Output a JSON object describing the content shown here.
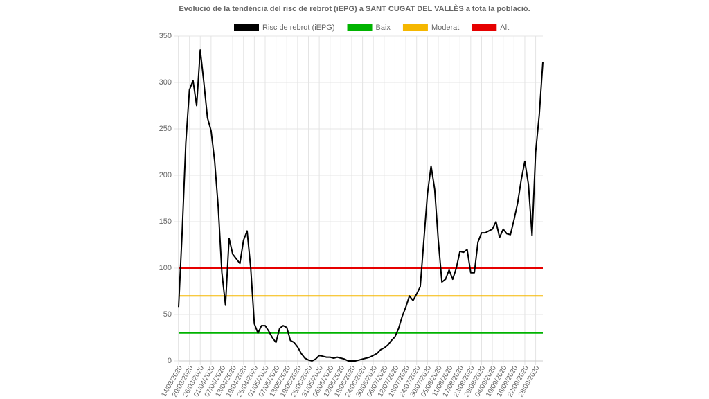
{
  "chart_data": {
    "type": "line",
    "title": "Evolució de la tendència del risc de rebrot (iEPG) a SANT CUGAT DEL VALLÈS a tota la població.",
    "categories": [
      "14/03/2020",
      null,
      null,
      "20/03/2020",
      null,
      null,
      "26/03/2020",
      null,
      null,
      "01/04/2020",
      null,
      null,
      "07/04/2020",
      null,
      null,
      "13/04/2020",
      null,
      null,
      "19/04/2020",
      null,
      null,
      "25/04/2020",
      null,
      null,
      "01/05/2020",
      null,
      null,
      "07/05/2020",
      null,
      null,
      "13/05/2020",
      null,
      null,
      "19/05/2020",
      null,
      null,
      "25/05/2020",
      null,
      null,
      "31/05/2020",
      null,
      null,
      "06/06/2020",
      null,
      null,
      "12/06/2020",
      null,
      null,
      "18/06/2020",
      null,
      null,
      "24/06/2020",
      null,
      null,
      "30/06/2020",
      null,
      null,
      "06/07/2020",
      null,
      null,
      "12/07/2020",
      null,
      null,
      "18/07/2020",
      null,
      null,
      "24/07/2020",
      null,
      null,
      "30/07/2020",
      null,
      null,
      "05/08/2020",
      null,
      null,
      "11/08/2020",
      null,
      null,
      "17/08/2020",
      null,
      null,
      "23/08/2020",
      null,
      null,
      "29/08/2020",
      null,
      null,
      "04/09/2020",
      null,
      null,
      "10/09/2020",
      null,
      null,
      "16/09/2020",
      null,
      null,
      "22/09/2020",
      null,
      null,
      "28/09/2020",
      null,
      null
    ],
    "series": [
      {
        "name": "Risc de rebrot (iEPG)",
        "color": "#000000",
        "values": [
          58,
          140,
          235,
          292,
          302,
          275,
          335,
          300,
          262,
          248,
          215,
          165,
          95,
          60,
          132,
          115,
          110,
          105,
          130,
          140,
          100,
          40,
          30,
          38,
          38,
          32,
          25,
          20,
          35,
          38,
          36,
          22,
          20,
          15,
          8,
          3,
          1,
          0,
          2,
          6,
          5,
          4,
          4,
          3,
          4,
          3,
          2,
          0,
          0,
          0,
          1,
          2,
          3,
          4,
          6,
          8,
          12,
          14,
          17,
          22,
          26,
          35,
          48,
          58,
          70,
          65,
          72,
          80,
          130,
          180,
          210,
          185,
          130,
          85,
          88,
          98,
          88,
          100,
          118,
          117,
          120,
          95,
          95,
          128,
          138,
          138,
          140,
          142,
          150,
          133,
          142,
          137,
          136,
          152,
          170,
          195,
          215,
          190,
          135,
          225,
          265,
          322
        ]
      }
    ],
    "reference_lines": [
      {
        "name": "Baix",
        "color": "#00b300",
        "value": 30
      },
      {
        "name": "Moderat",
        "color": "#f5b700",
        "value": 70
      },
      {
        "name": "Alt",
        "color": "#e60000",
        "value": 100
      }
    ],
    "ylim": [
      0,
      350
    ],
    "yticks": [
      0,
      50,
      100,
      150,
      200,
      250,
      300,
      350
    ],
    "grid": true
  }
}
